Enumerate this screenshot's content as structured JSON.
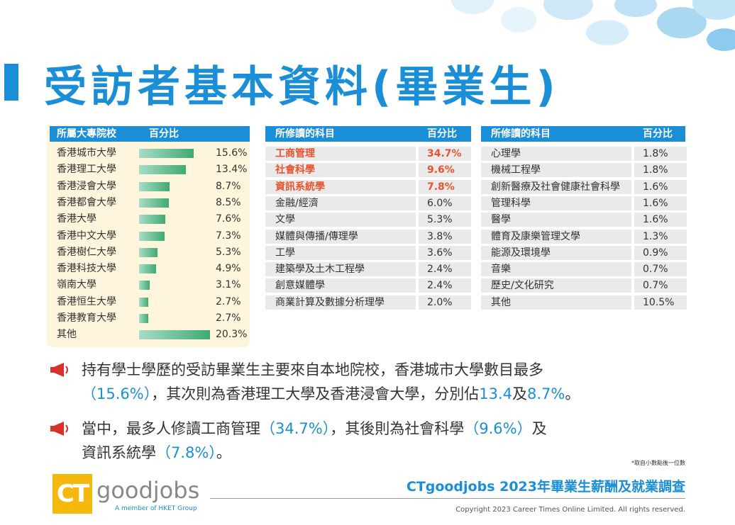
{
  "title": "受訪者基本資料(畢業生)",
  "school_table": {
    "header": [
      "所屬大專院校",
      "百分比"
    ],
    "rows": [
      {
        "name": "香港城市大學",
        "value": "15.6%",
        "pct": 15.6
      },
      {
        "name": "香港理工大學",
        "value": "13.4%",
        "pct": 13.4
      },
      {
        "name": "香港浸會大學",
        "value": "8.7%",
        "pct": 8.7
      },
      {
        "name": "香港都會大學",
        "value": "8.5%",
        "pct": 8.5
      },
      {
        "name": "香港大學",
        "value": "7.6%",
        "pct": 7.6
      },
      {
        "name": "香港中文大學",
        "value": "7.3%",
        "pct": 7.3
      },
      {
        "name": "香港樹仁大學",
        "value": "5.3%",
        "pct": 5.3
      },
      {
        "name": "香港科技大學",
        "value": "4.9%",
        "pct": 4.9
      },
      {
        "name": "嶺南大學",
        "value": "3.1%",
        "pct": 3.1
      },
      {
        "name": "香港恒生大學",
        "value": "2.7%",
        "pct": 2.7
      },
      {
        "name": "香港教育大學",
        "value": "2.7%",
        "pct": 2.7
      },
      {
        "name": "其他",
        "value": "20.3%",
        "pct": 20.3
      }
    ]
  },
  "subject_table_1": {
    "header": [
      "所修讀的科目",
      "百分比"
    ],
    "rows": [
      {
        "name": "工商管理",
        "value": "34.7%",
        "highlight": true
      },
      {
        "name": "社會科學",
        "value": "9.6%",
        "highlight": true
      },
      {
        "name": "資訊系統學",
        "value": "7.8%",
        "highlight": true
      },
      {
        "name": "金融/經濟",
        "value": "6.0%",
        "highlight": false
      },
      {
        "name": "文學",
        "value": "5.3%",
        "highlight": false
      },
      {
        "name": "媒體與傳播/傳理學",
        "value": "3.8%",
        "highlight": false
      },
      {
        "name": "工學",
        "value": "3.6%",
        "highlight": false
      },
      {
        "name": "建築學及土木工程學",
        "value": "2.4%",
        "highlight": false
      },
      {
        "name": "創意媒體學",
        "value": "2.4%",
        "highlight": false
      },
      {
        "name": "商業計算及數據分析理學",
        "value": "2.0%",
        "highlight": false
      }
    ]
  },
  "subject_table_2": {
    "header": [
      "所修讀的科目",
      "百分比"
    ],
    "rows": [
      {
        "name": "心理學",
        "value": "1.8%"
      },
      {
        "name": "機械工程學",
        "value": "1.8%"
      },
      {
        "name": "創新醫療及社會健康社會科學",
        "value": "1.6%"
      },
      {
        "name": "管理科學",
        "value": "1.6%"
      },
      {
        "name": "醫學",
        "value": "1.6%"
      },
      {
        "name": "體育及康樂管理文學",
        "value": "1.3%"
      },
      {
        "name": "能源及環境學",
        "value": "0.9%"
      },
      {
        "name": "音樂",
        "value": "0.7%"
      },
      {
        "name": "歷史/文化研究",
        "value": "0.7%"
      },
      {
        "name": "其他",
        "value": "10.5%"
      }
    ]
  },
  "bullet1": {
    "line1": "持有學士學歷的受訪畢業生主要來自本地院校，香港城市大學數目最多",
    "line2_pre_blue": "（15.6%）",
    "line2_mid": "，其次則為香港理工大學及香港浸會大學，分別佔",
    "line2_v1": "13.4",
    "line2_and": "及",
    "line2_v2": "8.7%",
    "line2_end": "。"
  },
  "bullet2": {
    "pre": "當中，最多人修讀工商管理",
    "v1": "（34.7%）",
    "mid": "，其後則為社會科學",
    "v2": "（9.6%）",
    "and": "及",
    "line2_pre": "資訊系統學",
    "v3": "（7.8%）",
    "end": "。"
  },
  "footnote": "*取自小數點後一位數",
  "logo": {
    "ct": "CT",
    "goodjobs": "goodjobs",
    "member": "A member of HKET Group"
  },
  "survey_title": "CTgoodjobs 2023年畢業生薪酬及就業調查",
  "copyright": "Copyright 2023 Career Times Online Limited. All rights reserved.",
  "colors": {
    "accent": "#1a8fd8",
    "highlight": "#e8542c",
    "bar": "#3faa72",
    "panel": "#fdf6dc",
    "logo_box": "#f5b80c"
  }
}
